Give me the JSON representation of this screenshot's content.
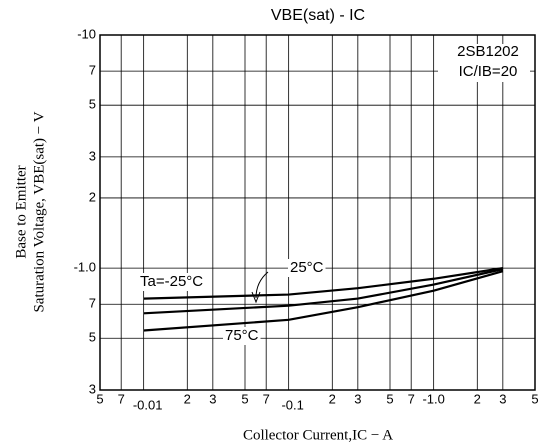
{
  "chart_data": {
    "type": "line",
    "title": "VBE(sat) - IC",
    "x_label": "Collector Current,IC − A",
    "y_label": [
      "Base to Emitter",
      "Saturation Voltage, VBE(sat) − V"
    ],
    "annotations": [
      "2SB1202",
      "IC/IB=20"
    ],
    "log_x": true,
    "log_y": true,
    "grid": true,
    "xlim": [
      -0.005,
      -5
    ],
    "xticks": [
      {
        "value": -0.005,
        "label": "5"
      },
      {
        "value": -0.007,
        "label": "7"
      },
      -0.01,
      {
        "value": -0.02,
        "label": "2"
      },
      {
        "value": -0.03,
        "label": "3"
      },
      {
        "value": -0.05,
        "label": "5"
      },
      {
        "value": -0.07,
        "label": "7"
      },
      -0.1,
      {
        "value": -0.2,
        "label": "2"
      },
      {
        "value": -0.3,
        "label": "3"
      },
      {
        "value": -0.5,
        "label": "5"
      },
      {
        "value": -0.7,
        "label": "7"
      },
      {
        "value": -1,
        "label": "-1.0"
      },
      {
        "value": -2,
        "label": "2"
      },
      {
        "value": -3,
        "label": "3"
      },
      {
        "value": -5,
        "label": "5"
      }
    ],
    "ylim": [
      -0.3,
      -10
    ],
    "yticks": [
      -10,
      {
        "value": -7,
        "label": "7"
      },
      {
        "value": -5,
        "label": "5"
      },
      {
        "value": -3,
        "label": "3"
      },
      {
        "value": -2,
        "label": "2"
      },
      {
        "value": -1,
        "label": "-1.0"
      },
      {
        "value": -0.7,
        "label": "7"
      },
      {
        "value": -0.5,
        "label": "5"
      },
      {
        "value": -0.3,
        "label": "3"
      }
    ],
    "x": [
      -0.01,
      -0.1,
      -0.3,
      -1,
      -3
    ],
    "series": [
      {
        "name": "Ta=-25°C",
        "color": "#000000",
        "values": [
          -0.74,
          -0.77,
          -0.82,
          -0.9,
          -1.0
        ]
      },
      {
        "name": "25°C",
        "color": "#000000",
        "values": [
          -0.64,
          -0.69,
          -0.74,
          -0.85,
          -0.99
        ]
      },
      {
        "name": "75°C",
        "color": "#000000",
        "values": [
          -0.54,
          -0.6,
          -0.68,
          -0.8,
          -0.97
        ]
      }
    ]
  }
}
